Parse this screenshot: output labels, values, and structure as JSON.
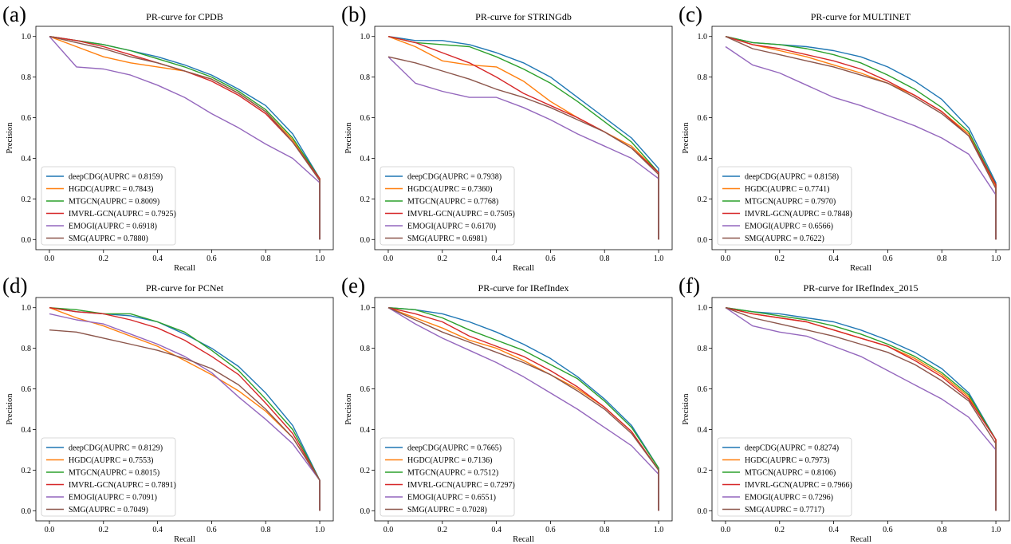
{
  "colors": {
    "deepCDG": "#1f77b4",
    "HGDC": "#ff7f0e",
    "MTGCN": "#2ca02c",
    "IMVRL-GCN": "#d62728",
    "EMOGI": "#9467bd",
    "SMG": "#8c564b"
  },
  "chart_data": [
    {
      "type": "line",
      "panel_label": "(a)",
      "title": "PR-curve for CPDB",
      "xlabel": "Recall",
      "ylabel": "Precision",
      "xlim": [
        0,
        1
      ],
      "ylim": [
        0,
        1
      ],
      "grid": false,
      "legend": "lower-left",
      "xticks": [
        "0.0",
        "0.2",
        "0.4",
        "0.6",
        "0.8",
        "1.0"
      ],
      "yticks": [
        "0.0",
        "0.2",
        "0.4",
        "0.6",
        "0.8",
        "1.0"
      ],
      "x": [
        0,
        0.1,
        0.2,
        0.3,
        0.4,
        0.5,
        0.6,
        0.7,
        0.8,
        0.9,
        1.0,
        1.0
      ],
      "series": [
        {
          "name": "deepCDG",
          "legend_label": "deepCDG(AUPRC = 0.8159)",
          "values": [
            1.0,
            0.98,
            0.96,
            0.93,
            0.9,
            0.86,
            0.81,
            0.74,
            0.66,
            0.52,
            0.3,
            0
          ]
        },
        {
          "name": "HGDC",
          "legend_label": "HGDC(AUPRC = 0.7843)",
          "values": [
            1.0,
            0.95,
            0.9,
            0.87,
            0.85,
            0.83,
            0.79,
            0.72,
            0.63,
            0.49,
            0.3,
            0
          ]
        },
        {
          "name": "MTGCN",
          "legend_label": "MTGCN(AUPRC = 0.8009)",
          "values": [
            1.0,
            0.98,
            0.96,
            0.93,
            0.89,
            0.85,
            0.8,
            0.73,
            0.64,
            0.5,
            0.3,
            0
          ]
        },
        {
          "name": "IMVRL-GCN",
          "legend_label": "IMVRL-GCN(AUPRC = 0.7925)",
          "values": [
            1.0,
            0.98,
            0.95,
            0.91,
            0.87,
            0.83,
            0.78,
            0.71,
            0.62,
            0.48,
            0.3,
            0
          ]
        },
        {
          "name": "EMOGI",
          "legend_label": "EMOGI(AUPRC = 0.6918)",
          "values": [
            1.0,
            0.85,
            0.84,
            0.81,
            0.76,
            0.7,
            0.62,
            0.55,
            0.47,
            0.4,
            0.28,
            0
          ]
        },
        {
          "name": "SMG",
          "legend_label": "SMG(AUPRC = 0.7880)",
          "values": [
            1.0,
            0.97,
            0.94,
            0.9,
            0.87,
            0.83,
            0.79,
            0.72,
            0.63,
            0.48,
            0.29,
            0
          ]
        }
      ]
    },
    {
      "type": "line",
      "panel_label": "(b)",
      "title": "PR-curve for STRINGdb",
      "xlabel": "Recall",
      "ylabel": "Precision",
      "xlim": [
        0,
        1
      ],
      "ylim": [
        0,
        1
      ],
      "grid": false,
      "legend": "lower-left",
      "xticks": [
        "0.0",
        "0.2",
        "0.4",
        "0.6",
        "0.8",
        "1.0"
      ],
      "yticks": [
        "0.0",
        "0.2",
        "0.4",
        "0.6",
        "0.8",
        "1.0"
      ],
      "x": [
        0,
        0.1,
        0.2,
        0.3,
        0.4,
        0.5,
        0.6,
        0.7,
        0.8,
        0.9,
        1.0,
        1.0
      ],
      "series": [
        {
          "name": "deepCDG",
          "legend_label": "deepCDG(AUPRC = 0.7938)",
          "values": [
            1.0,
            0.98,
            0.98,
            0.96,
            0.92,
            0.87,
            0.8,
            0.7,
            0.6,
            0.5,
            0.35,
            0
          ]
        },
        {
          "name": "HGDC",
          "legend_label": "HGDC(AUPRC = 0.7360)",
          "values": [
            1.0,
            0.95,
            0.88,
            0.86,
            0.85,
            0.78,
            0.68,
            0.6,
            0.53,
            0.46,
            0.33,
            0
          ]
        },
        {
          "name": "MTGCN",
          "legend_label": "MTGCN(AUPRC = 0.7768)",
          "values": [
            1.0,
            0.97,
            0.96,
            0.95,
            0.9,
            0.84,
            0.77,
            0.68,
            0.58,
            0.48,
            0.33,
            0
          ]
        },
        {
          "name": "IMVRL-GCN",
          "legend_label": "IMVRL-GCN(AUPRC = 0.7505)",
          "values": [
            1.0,
            0.97,
            0.92,
            0.87,
            0.8,
            0.72,
            0.66,
            0.6,
            0.53,
            0.45,
            0.33,
            0
          ]
        },
        {
          "name": "EMOGI",
          "legend_label": "EMOGI(AUPRC = 0.6170)",
          "values": [
            0.9,
            0.77,
            0.73,
            0.7,
            0.7,
            0.65,
            0.59,
            0.52,
            0.46,
            0.4,
            0.3,
            0
          ]
        },
        {
          "name": "SMG",
          "legend_label": "SMG(AUPRC = 0.6981)",
          "values": [
            0.9,
            0.87,
            0.83,
            0.79,
            0.74,
            0.7,
            0.65,
            0.59,
            0.53,
            0.45,
            0.32,
            0
          ]
        }
      ]
    },
    {
      "type": "line",
      "panel_label": "(c)",
      "title": "PR-curve for MULTINET",
      "xlabel": "Recall",
      "ylabel": "Precision",
      "xlim": [
        0,
        1
      ],
      "ylim": [
        0,
        1
      ],
      "grid": false,
      "legend": "lower-left",
      "xticks": [
        "0.0",
        "0.2",
        "0.4",
        "0.6",
        "0.8",
        "1.0"
      ],
      "yticks": [
        "0.0",
        "0.2",
        "0.4",
        "0.6",
        "0.8",
        "1.0"
      ],
      "x": [
        0,
        0.1,
        0.2,
        0.3,
        0.4,
        0.5,
        0.6,
        0.7,
        0.8,
        0.9,
        1.0,
        1.0
      ],
      "series": [
        {
          "name": "deepCDG",
          "legend_label": "deepCDG(AUPRC = 0.8158)",
          "values": [
            1.0,
            0.97,
            0.96,
            0.95,
            0.93,
            0.9,
            0.85,
            0.78,
            0.69,
            0.55,
            0.28,
            0
          ]
        },
        {
          "name": "HGDC",
          "legend_label": "HGDC(AUPRC = 0.7741)",
          "values": [
            1.0,
            0.96,
            0.93,
            0.9,
            0.86,
            0.82,
            0.77,
            0.71,
            0.63,
            0.52,
            0.26,
            0
          ]
        },
        {
          "name": "MTGCN",
          "legend_label": "MTGCN(AUPRC = 0.7970)",
          "values": [
            1.0,
            0.97,
            0.96,
            0.94,
            0.91,
            0.87,
            0.81,
            0.74,
            0.65,
            0.53,
            0.27,
            0
          ]
        },
        {
          "name": "IMVRL-GCN",
          "legend_label": "IMVRL-GCN(AUPRC = 0.7848)",
          "values": [
            1.0,
            0.96,
            0.94,
            0.91,
            0.88,
            0.84,
            0.78,
            0.71,
            0.63,
            0.51,
            0.27,
            0
          ]
        },
        {
          "name": "EMOGI",
          "legend_label": "EMOGI(AUPRC = 0.6566)",
          "values": [
            0.95,
            0.86,
            0.82,
            0.76,
            0.7,
            0.66,
            0.61,
            0.56,
            0.5,
            0.42,
            0.22,
            0
          ]
        },
        {
          "name": "SMG",
          "legend_label": "SMG(AUPRC = 0.7622)",
          "values": [
            1.0,
            0.94,
            0.91,
            0.88,
            0.85,
            0.81,
            0.77,
            0.7,
            0.62,
            0.51,
            0.25,
            0
          ]
        }
      ]
    },
    {
      "type": "line",
      "panel_label": "(d)",
      "title": "PR-curve for PCNet",
      "xlabel": "Recall",
      "ylabel": "Precision",
      "xlim": [
        0,
        1
      ],
      "ylim": [
        0,
        1
      ],
      "grid": false,
      "legend": "lower-left",
      "xticks": [
        "0.0",
        "0.2",
        "0.4",
        "0.6",
        "0.8",
        "1.0"
      ],
      "yticks": [
        "0.0",
        "0.2",
        "0.4",
        "0.6",
        "0.8",
        "1.0"
      ],
      "x": [
        0,
        0.1,
        0.2,
        0.3,
        0.4,
        0.5,
        0.6,
        0.7,
        0.8,
        0.9,
        1.0,
        1.0
      ],
      "series": [
        {
          "name": "deepCDG",
          "legend_label": "deepCDG(AUPRC = 0.8129)",
          "values": [
            1.0,
            0.98,
            0.97,
            0.96,
            0.93,
            0.87,
            0.8,
            0.71,
            0.58,
            0.42,
            0.15,
            0
          ]
        },
        {
          "name": "HGDC",
          "legend_label": "HGDC(AUPRC = 0.7553)",
          "values": [
            1.0,
            0.95,
            0.91,
            0.86,
            0.81,
            0.74,
            0.67,
            0.59,
            0.49,
            0.36,
            0.15,
            0
          ]
        },
        {
          "name": "MTGCN",
          "legend_label": "MTGCN(AUPRC = 0.8015)",
          "values": [
            1.0,
            0.99,
            0.97,
            0.97,
            0.93,
            0.88,
            0.79,
            0.69,
            0.55,
            0.4,
            0.15,
            0
          ]
        },
        {
          "name": "IMVRL-GCN",
          "legend_label": "IMVRL-GCN(AUPRC = 0.7891)",
          "values": [
            1.0,
            0.98,
            0.97,
            0.94,
            0.9,
            0.84,
            0.76,
            0.67,
            0.53,
            0.38,
            0.15,
            0
          ]
        },
        {
          "name": "EMOGI",
          "legend_label": "EMOGI(AUPRC = 0.7091)",
          "values": [
            0.97,
            0.94,
            0.92,
            0.87,
            0.82,
            0.76,
            0.68,
            0.56,
            0.45,
            0.33,
            0.15,
            0
          ]
        },
        {
          "name": "SMG",
          "legend_label": "SMG(AUPRC = 0.7049)",
          "values": [
            0.89,
            0.88,
            0.85,
            0.82,
            0.79,
            0.75,
            0.7,
            0.62,
            0.5,
            0.36,
            0.15,
            0
          ]
        }
      ]
    },
    {
      "type": "line",
      "panel_label": "(e)",
      "title": "PR-curve for IRefIndex",
      "xlabel": "Recall",
      "ylabel": "Precision",
      "xlim": [
        0,
        1
      ],
      "ylim": [
        0,
        1
      ],
      "grid": false,
      "legend": "lower-left",
      "xticks": [
        "0.0",
        "0.2",
        "0.4",
        "0.6",
        "0.8",
        "1.0"
      ],
      "yticks": [
        "0.0",
        "0.2",
        "0.4",
        "0.6",
        "0.8",
        "1.0"
      ],
      "x": [
        0,
        0.1,
        0.2,
        0.3,
        0.4,
        0.5,
        0.6,
        0.7,
        0.8,
        0.9,
        1.0,
        1.0
      ],
      "series": [
        {
          "name": "deepCDG",
          "legend_label": "deepCDG(AUPRC = 0.7665)",
          "values": [
            1.0,
            0.99,
            0.97,
            0.93,
            0.88,
            0.82,
            0.75,
            0.66,
            0.55,
            0.42,
            0.21,
            0
          ]
        },
        {
          "name": "HGDC",
          "legend_label": "HGDC(AUPRC = 0.7136)",
          "values": [
            1.0,
            0.95,
            0.9,
            0.84,
            0.8,
            0.74,
            0.67,
            0.6,
            0.51,
            0.39,
            0.2,
            0
          ]
        },
        {
          "name": "MTGCN",
          "legend_label": "MTGCN(AUPRC = 0.7512)",
          "values": [
            1.0,
            0.99,
            0.95,
            0.89,
            0.84,
            0.79,
            0.72,
            0.65,
            0.54,
            0.41,
            0.21,
            0
          ]
        },
        {
          "name": "IMVRL-GCN",
          "legend_label": "IMVRL-GCN(AUPRC = 0.7297)",
          "values": [
            1.0,
            0.97,
            0.93,
            0.86,
            0.81,
            0.76,
            0.69,
            0.61,
            0.51,
            0.39,
            0.2,
            0
          ]
        },
        {
          "name": "EMOGI",
          "legend_label": "EMOGI(AUPRC = 0.6551)",
          "values": [
            1.0,
            0.92,
            0.85,
            0.79,
            0.73,
            0.66,
            0.58,
            0.5,
            0.41,
            0.32,
            0.18,
            0
          ]
        },
        {
          "name": "SMG",
          "legend_label": "SMG(AUPRC = 0.7028)",
          "values": [
            1.0,
            0.94,
            0.88,
            0.83,
            0.78,
            0.73,
            0.67,
            0.59,
            0.5,
            0.38,
            0.2,
            0
          ]
        }
      ]
    },
    {
      "type": "line",
      "panel_label": "(f)",
      "title": "PR-curve for IRefIndex_2015",
      "xlabel": "Recall",
      "ylabel": "Precision",
      "xlim": [
        0,
        1
      ],
      "ylim": [
        0,
        1
      ],
      "grid": false,
      "legend": "lower-left",
      "xticks": [
        "0.0",
        "0.2",
        "0.4",
        "0.6",
        "0.8",
        "1.0"
      ],
      "yticks": [
        "0.0",
        "0.2",
        "0.4",
        "0.6",
        "0.8",
        "1.0"
      ],
      "x": [
        0,
        0.1,
        0.2,
        0.3,
        0.4,
        0.5,
        0.6,
        0.7,
        0.8,
        0.9,
        1.0,
        1.0
      ],
      "series": [
        {
          "name": "deepCDG",
          "legend_label": "deepCDG(AUPRC = 0.8274)",
          "values": [
            1.0,
            0.98,
            0.97,
            0.95,
            0.93,
            0.89,
            0.84,
            0.78,
            0.7,
            0.58,
            0.35,
            0
          ]
        },
        {
          "name": "HGDC",
          "legend_label": "HGDC(AUPRC = 0.7973)",
          "values": [
            1.0,
            0.97,
            0.95,
            0.93,
            0.89,
            0.85,
            0.81,
            0.75,
            0.67,
            0.56,
            0.35,
            0
          ]
        },
        {
          "name": "MTGCN",
          "legend_label": "MTGCN(AUPRC = 0.8106)",
          "values": [
            1.0,
            0.98,
            0.96,
            0.94,
            0.91,
            0.87,
            0.82,
            0.76,
            0.68,
            0.57,
            0.35,
            0
          ]
        },
        {
          "name": "IMVRL-GCN",
          "legend_label": "IMVRL-GCN(AUPRC = 0.7966)",
          "values": [
            1.0,
            0.97,
            0.95,
            0.93,
            0.89,
            0.85,
            0.81,
            0.74,
            0.66,
            0.55,
            0.35,
            0
          ]
        },
        {
          "name": "EMOGI",
          "legend_label": "EMOGI(AUPRC = 0.7296)",
          "values": [
            1.0,
            0.91,
            0.88,
            0.86,
            0.81,
            0.76,
            0.69,
            0.62,
            0.55,
            0.46,
            0.3,
            0
          ]
        },
        {
          "name": "SMG",
          "legend_label": "SMG(AUPRC = 0.7717)",
          "values": [
            1.0,
            0.95,
            0.92,
            0.89,
            0.86,
            0.82,
            0.78,
            0.72,
            0.64,
            0.54,
            0.33,
            0
          ]
        }
      ]
    }
  ]
}
